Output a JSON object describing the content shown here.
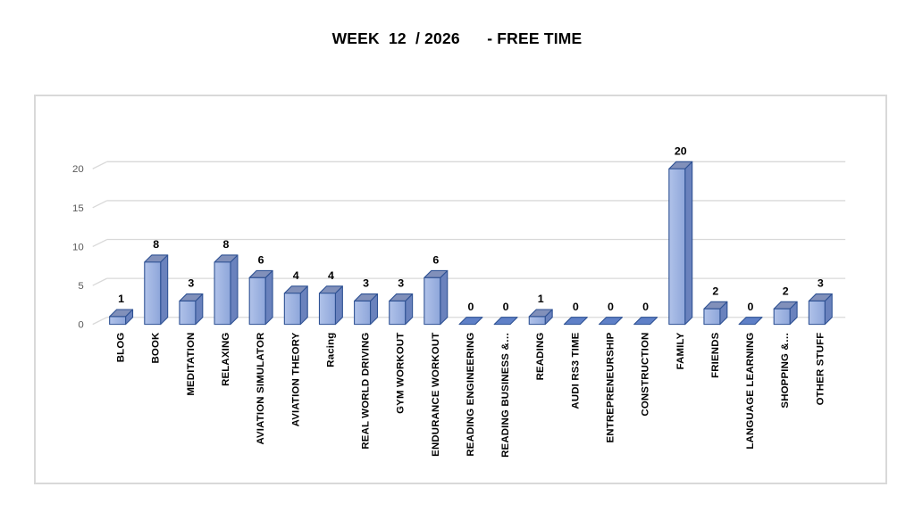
{
  "chart_data": {
    "type": "bar",
    "bar_style": "3d-column",
    "title": "WEEK  12  / 2026      - FREE TIME",
    "categories": [
      "BLOG",
      "BOOK",
      "MEDITATION",
      "RELAXING",
      "AVIATION SIMULATOR",
      "AVIATION THEORY",
      "Racing",
      "REAL WORLD DRIVING",
      "GYM WORKOUT",
      "ENDURANCE WORKOUT",
      "READING ENGINEERING",
      "READING BUSINESS &…",
      "READING",
      "AUDI RS3 TIME",
      "ENTREPRENEURSHIP",
      "CONSTRUCTION",
      "FAMILY",
      "FRIENDS",
      "LANGUAGE LEARNING",
      "SHOPPING &…",
      "OTHER STUFF"
    ],
    "values": [
      1,
      8,
      3,
      8,
      6,
      4,
      4,
      3,
      3,
      6,
      0,
      0,
      1,
      0,
      0,
      0,
      20,
      2,
      0,
      2,
      3
    ],
    "yticks": [
      0,
      5,
      10,
      15,
      20
    ],
    "ylim": [
      0,
      20
    ],
    "xlabel": "",
    "ylabel": "",
    "data_labels": true,
    "legend": "none",
    "grid": true
  },
  "colors": {
    "bar_front_light": "#b0c2e9",
    "bar_front_dark": "#8ea6da",
    "bar_top": "#8190ba",
    "bar_side": "#6a82bd",
    "bar_outline": "#2f5294",
    "zero_tile": "#5f80c7",
    "gridline": "#d9d9d9",
    "axis_text": "#595959",
    "label_text": "#000000",
    "chart_border": "#d9d9d9",
    "background": "#ffffff"
  }
}
